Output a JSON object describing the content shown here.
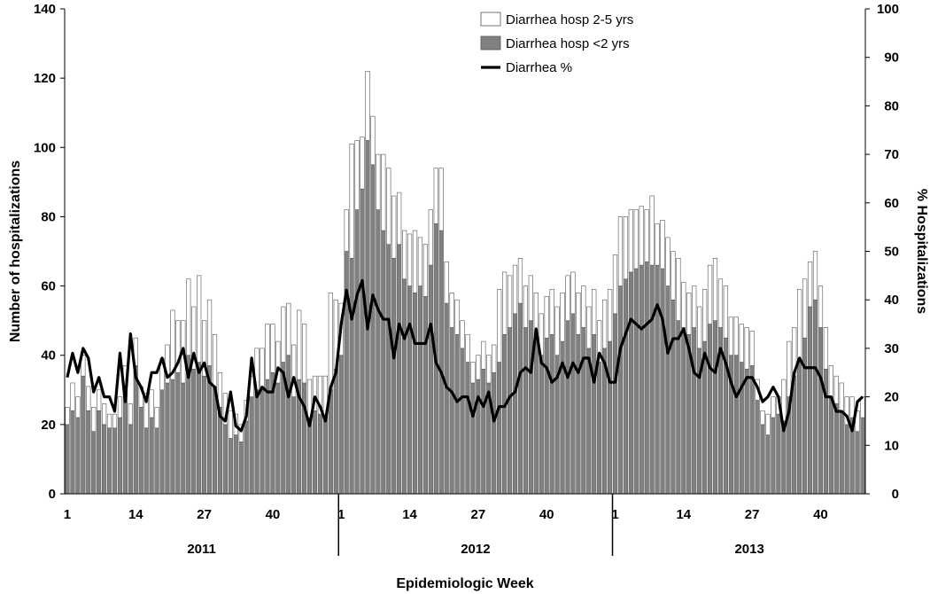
{
  "chart_data": {
    "type": "bar",
    "stacked": true,
    "xlabel": "Epidemiologic Week",
    "ylabel": "Number of hospitalizations",
    "y2label": "% Hospitalizations",
    "ylim": [
      0,
      140
    ],
    "y2lim": [
      0,
      100
    ],
    "yticks": [
      0,
      20,
      40,
      60,
      80,
      100,
      120,
      140
    ],
    "y2ticks": [
      0,
      10,
      20,
      30,
      40,
      50,
      60,
      70,
      80,
      90,
      100
    ],
    "years": [
      {
        "label": "2011",
        "weeks": 52
      },
      {
        "label": "2012",
        "weeks": 52
      },
      {
        "label": "2013",
        "weeks": 52
      }
    ],
    "x_tick_weeks": [
      1,
      14,
      27,
      40
    ],
    "x_tick_labels": [
      "1",
      "14",
      "27",
      "40"
    ],
    "legend": {
      "position": "top-right",
      "items": [
        "Diarrhea hosp 2-5 yrs",
        "Diarrhea hosp <2 yrs",
        "Diarrhea %"
      ]
    },
    "colors": {
      "under2": "#808080",
      "age2to5": "#ffffff",
      "bar_stroke": "#555555",
      "line": "#000000"
    },
    "series": [
      {
        "name": "Diarrhea hosp <2 yrs",
        "axis": "left",
        "values": [
          20,
          24,
          22,
          34,
          24,
          18,
          24,
          20,
          19,
          19,
          22,
          30,
          20,
          37,
          25,
          19,
          22,
          19,
          30,
          32,
          33,
          35,
          32,
          40,
          36,
          38,
          34,
          37,
          31,
          25,
          20,
          16,
          17,
          15,
          21,
          28,
          30,
          31,
          33,
          35,
          32,
          38,
          40,
          28,
          33,
          32,
          22,
          24,
          23,
          22,
          30,
          36,
          40,
          70,
          68,
          82,
          88,
          102,
          95,
          82,
          76,
          72,
          68,
          72,
          62,
          60,
          58,
          60,
          57,
          66,
          78,
          76,
          55,
          48,
          46,
          42,
          38,
          32,
          33,
          36,
          32,
          35,
          38,
          46,
          48,
          52,
          55,
          48,
          50,
          46,
          40,
          45,
          46,
          40,
          44,
          50,
          52,
          46,
          48,
          42,
          46,
          38,
          42,
          44,
          52,
          60,
          62,
          64,
          65,
          66,
          67,
          66,
          66,
          65,
          60,
          56,
          50,
          48,
          46,
          48,
          42,
          44,
          49,
          50,
          48,
          45,
          40,
          40,
          38,
          36,
          37,
          27,
          20,
          17,
          22,
          23,
          21,
          28,
          34,
          38,
          45,
          54,
          56,
          48,
          36,
          28,
          26,
          24,
          20,
          22,
          18,
          22
        ]
      },
      {
        "name": "Diarrhea hosp 2-5 yrs",
        "axis": "left",
        "values": [
          5,
          8,
          6,
          6,
          7,
          7,
          6,
          6,
          4,
          4,
          6,
          7,
          6,
          8,
          6,
          10,
          8,
          6,
          9,
          11,
          20,
          15,
          18,
          22,
          18,
          25,
          16,
          19,
          15,
          10,
          9,
          8,
          6,
          5,
          6,
          6,
          12,
          11,
          16,
          14,
          12,
          16,
          15,
          15,
          20,
          17,
          11,
          10,
          11,
          12,
          28,
          20,
          15,
          12,
          33,
          20,
          15,
          20,
          14,
          16,
          22,
          22,
          18,
          15,
          14,
          15,
          18,
          14,
          15,
          16,
          16,
          18,
          12,
          10,
          10,
          8,
          8,
          6,
          7,
          8,
          8,
          8,
          21,
          18,
          15,
          14,
          13,
          12,
          13,
          12,
          12,
          12,
          13,
          14,
          14,
          13,
          12,
          12,
          12,
          12,
          13,
          12,
          14,
          15,
          17,
          20,
          18,
          18,
          17,
          17,
          15,
          20,
          12,
          14,
          14,
          14,
          18,
          13,
          12,
          12,
          12,
          15,
          17,
          18,
          14,
          15,
          11,
          11,
          11,
          12,
          10,
          6,
          4,
          6,
          6,
          5,
          12,
          16,
          14,
          21,
          17,
          13,
          14,
          12,
          12,
          9,
          8,
          8,
          8,
          6,
          6,
          6
        ]
      },
      {
        "name": "Diarrhea %",
        "axis": "right",
        "type": "line",
        "values": [
          24,
          29,
          25,
          30,
          28,
          21,
          24,
          20,
          20,
          17,
          29,
          19,
          33,
          24,
          22,
          19,
          25,
          25,
          28,
          24,
          25,
          27,
          30,
          24,
          29,
          25,
          27,
          23,
          22,
          16,
          15,
          21,
          14,
          13,
          16,
          28,
          20,
          22,
          21,
          21,
          26,
          25,
          20,
          24,
          20,
          18,
          14,
          20,
          18,
          15,
          22,
          25,
          35,
          42,
          36,
          41,
          44,
          34,
          41,
          38,
          36,
          36,
          28,
          35,
          32,
          35,
          31,
          31,
          31,
          35,
          27,
          25,
          22,
          21,
          19,
          20,
          20,
          16,
          20,
          18,
          21,
          15,
          18,
          18,
          20,
          21,
          25,
          26,
          25,
          34,
          27,
          26,
          23,
          24,
          27,
          24,
          27,
          25,
          28,
          28,
          23,
          29,
          27,
          23,
          23,
          30,
          33,
          36,
          35,
          34,
          35,
          36,
          39,
          36,
          29,
          32,
          32,
          34,
          30,
          25,
          24,
          29,
          26,
          25,
          30,
          27,
          23,
          20,
          22,
          24,
          24,
          22,
          19,
          20,
          22,
          20,
          13,
          17,
          25,
          28,
          26,
          26,
          26,
          24,
          20,
          20,
          17,
          17,
          16,
          13,
          19,
          20
        ]
      }
    ]
  }
}
